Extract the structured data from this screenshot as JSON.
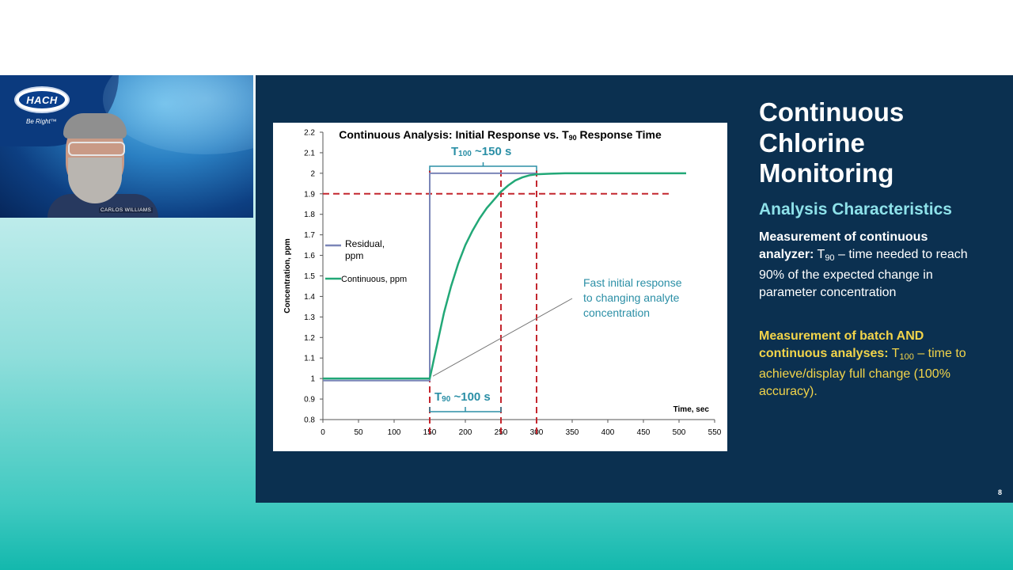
{
  "webcam": {
    "logo_text": "HACH",
    "tagline": "Be Right™",
    "name_label": "CARLOS WILLIAMS"
  },
  "slide": {
    "title": "Continuous Chlorine Monitoring",
    "subtitle": "Analysis Characteristics",
    "para1": {
      "bold": "Measurement of continuous analyzer:",
      "t_base": "T",
      "t_sub": "90",
      "rest": " – time needed to reach 90% of the expected change in parameter concentration"
    },
    "para2": {
      "bold": "Measurement of batch AND continuous analyses:",
      "t_base": " T",
      "t_sub": "100",
      "rest": " – time to achieve/display full change (100% accuracy)."
    },
    "page_number": "8"
  },
  "chart_data": {
    "type": "line",
    "title": "Continuous Analysis: Initial Response vs. T90 Response Time",
    "title_parts": {
      "pre": "Continuous Analysis: Initial Response vs. T",
      "sub": "90",
      "post": " Response Time"
    },
    "xlabel": "Time, sec",
    "ylabel": "Concentration, ppm",
    "xlim": [
      0,
      550
    ],
    "ylim": [
      0.8,
      2.2
    ],
    "x_ticks": [
      0,
      50,
      100,
      150,
      200,
      250,
      300,
      350,
      400,
      450,
      500,
      550
    ],
    "y_ticks": [
      0.8,
      0.9,
      1,
      1.1,
      1.2,
      1.3,
      1.4,
      1.5,
      1.6,
      1.7,
      1.8,
      1.9,
      2,
      2.1,
      2.2
    ],
    "y_tick_labels": [
      "0.8",
      "0.9",
      "1",
      "1.1",
      "1.2",
      "1.3",
      "1.4",
      "1.5",
      "1.6",
      "1.7",
      "1.8",
      "1.9",
      "2",
      "2.1",
      "2.2"
    ],
    "grid": false,
    "legend_position": "left",
    "series": [
      {
        "name": "Residual, ppm",
        "color": "#7b86b8",
        "x": [
          0,
          150,
          150,
          300
        ],
        "y": [
          0.99,
          0.99,
          2.0,
          2.0
        ]
      },
      {
        "name": "Continuous, ppm",
        "color": "#22a877",
        "x": [
          0,
          150,
          160,
          170,
          180,
          190,
          200,
          210,
          220,
          230,
          240,
          250,
          260,
          270,
          280,
          290,
          300,
          320,
          340,
          360,
          400,
          450,
          510
        ],
        "y": [
          1.0,
          1.0,
          1.16,
          1.32,
          1.45,
          1.56,
          1.65,
          1.72,
          1.78,
          1.83,
          1.87,
          1.91,
          1.94,
          1.965,
          1.98,
          1.99,
          1.995,
          1.998,
          2.0,
          2.0,
          2.0,
          2.0,
          2.0
        ]
      }
    ],
    "reference_lines": {
      "color": "#c4262e",
      "horizontal": {
        "y": 1.9,
        "x_from": 0,
        "x_to": 490
      },
      "verticals": [
        150,
        250,
        300
      ]
    },
    "annotations": {
      "t100": {
        "base": "T",
        "sub": "100",
        "rest": " ~150 s",
        "from": 150,
        "to": 300
      },
      "t90": {
        "base": "T",
        "sub": "90",
        "rest": " ~100 s",
        "from": 150,
        "to": 250
      },
      "callout": {
        "lines": [
          "Fast initial response",
          "to changing analyte",
          "concentration"
        ],
        "points_to": [
          150,
          1.0
        ]
      },
      "color": "#2b8fa6"
    }
  }
}
